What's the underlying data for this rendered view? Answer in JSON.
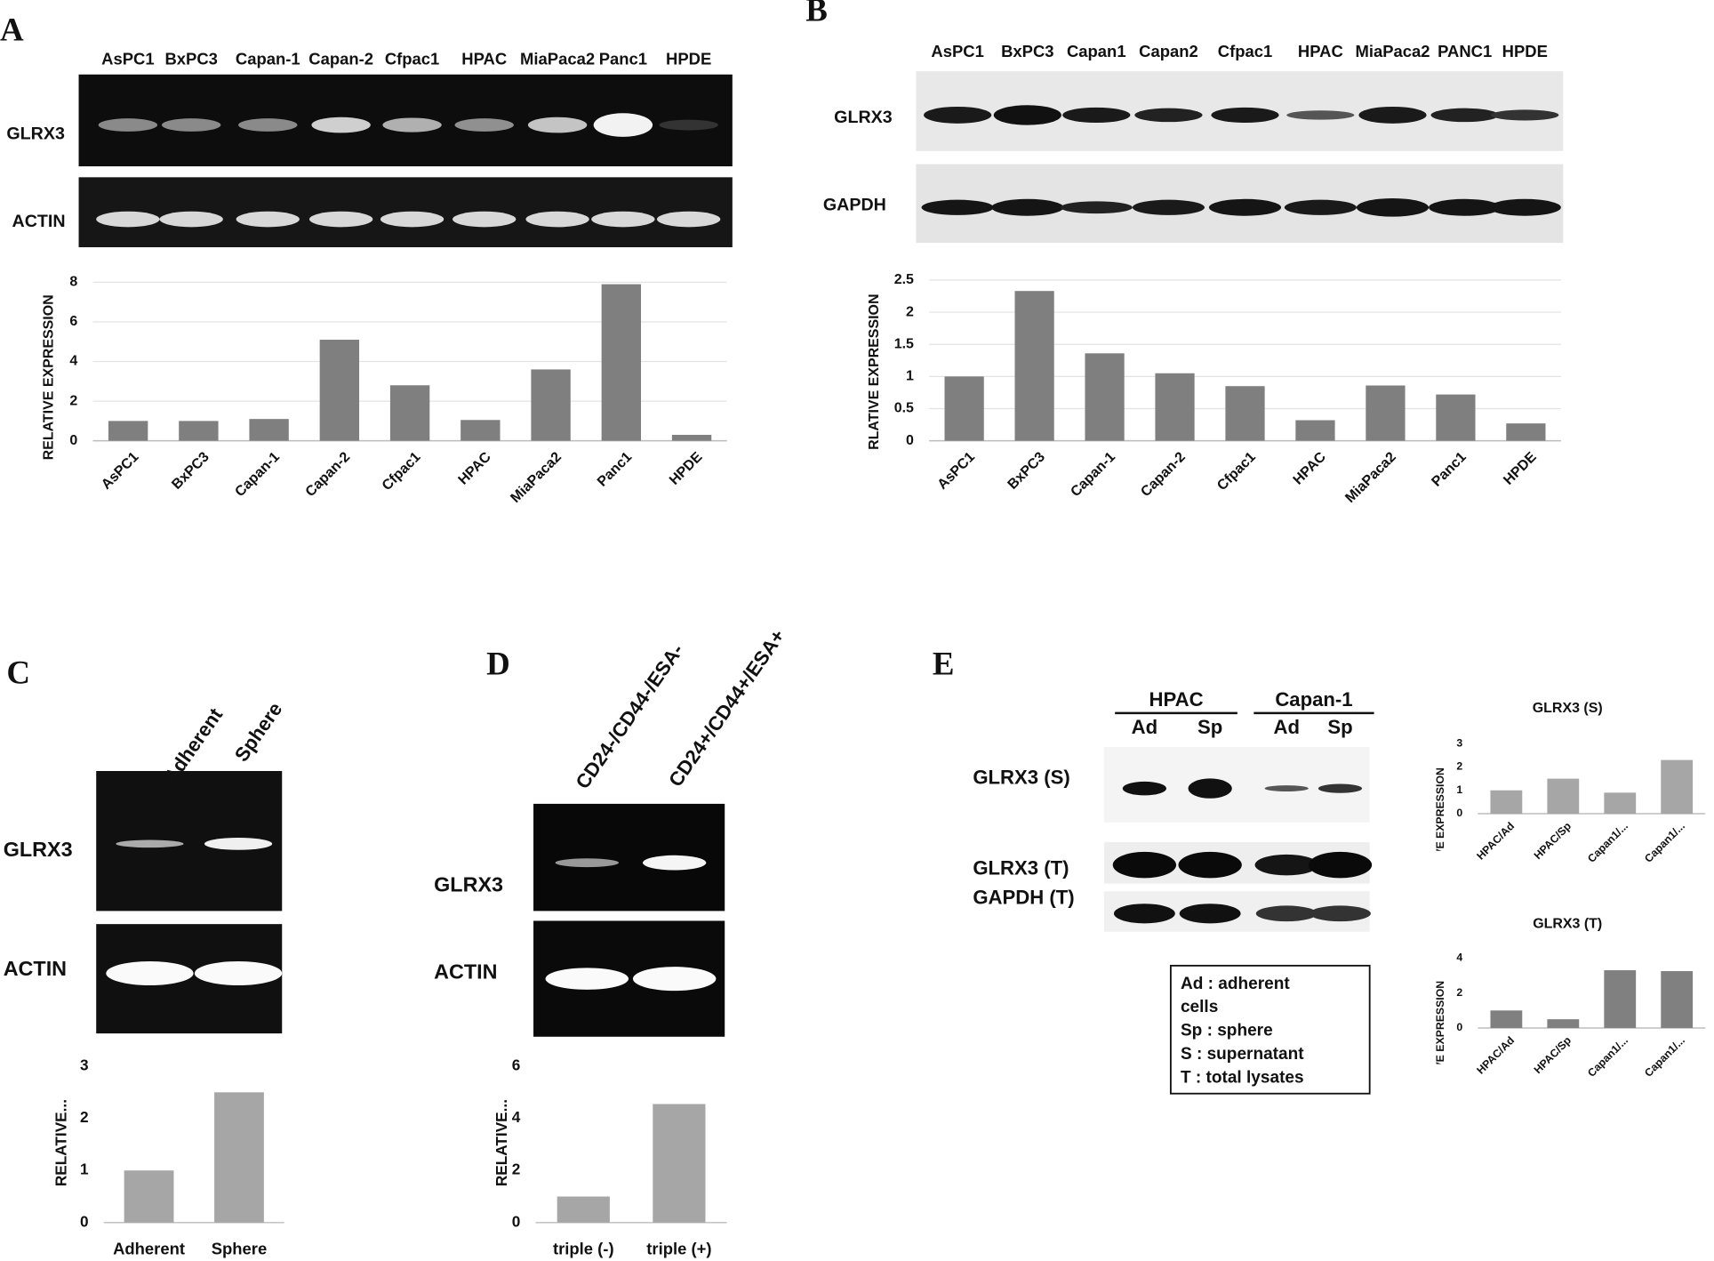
{
  "panels": {
    "A": {
      "letter": "A",
      "lanes": [
        "AsPC1",
        "BxPC3",
        "Capan-1",
        "Capan-2",
        "Cfpac1",
        "HPAC",
        "MiaPaca2",
        "Panc1",
        "HPDE"
      ],
      "rows": [
        "GLRX3",
        "ACTIN"
      ]
    },
    "B": {
      "letter": "B",
      "lanes": [
        "AsPC1",
        "BxPC3",
        "Capan1",
        "Capan2",
        "Cfpac1",
        "HPAC",
        "MiaPaca2",
        "PANC1",
        "HPDE"
      ],
      "rows": [
        "GLRX3",
        "GAPDH"
      ]
    },
    "C": {
      "letter": "C",
      "lanes": [
        "Adherent",
        "Sphere"
      ],
      "rows": [
        "GLRX3",
        "ACTIN"
      ]
    },
    "D": {
      "letter": "D",
      "lanes": [
        "CD24-/CD44-/ESA-",
        "CD24+/CD44+/ESA+"
      ],
      "rows": [
        "GLRX3",
        "ACTIN"
      ]
    },
    "E": {
      "letter": "E",
      "groups": [
        "HPAC",
        "Capan-1"
      ],
      "lanes": [
        "Ad",
        "Sp",
        "Ad",
        "Sp"
      ],
      "rows": [
        "GLRX3 (S)",
        "GLRX3 (T)",
        "GAPDH (T)"
      ],
      "legend": [
        "Ad : adherent",
        "cells",
        "Sp : sphere",
        "S : supernatant",
        "T : total lysates"
      ]
    }
  },
  "chart_data": [
    {
      "type": "bar",
      "ylabel": "RELATIVE EXPRESSION",
      "categories": [
        "AsPC1",
        "BxPC3",
        "Capan-1",
        "Capan-2",
        "Cfpac1",
        "HPAC",
        "MiaPaca2",
        "Panc1",
        "HPDE"
      ],
      "values": [
        1,
        1,
        1.1,
        5.1,
        2.8,
        1.05,
        3.6,
        7.9,
        0.3
      ],
      "color": "#7f7f7f",
      "ylim": [
        0,
        8
      ],
      "yticks": [
        0,
        2,
        4,
        6,
        8
      ],
      "grid": true
    },
    {
      "type": "bar",
      "ylabel": "RLATIVE EXPRESSION",
      "categories": [
        "AsPC1",
        "BxPC3",
        "Capan-1",
        "Capan-2",
        "Cfpac1",
        "HPAC",
        "MiaPaca2",
        "Panc1",
        "HPDE"
      ],
      "values": [
        1,
        2.33,
        1.36,
        1.05,
        0.85,
        0.32,
        0.86,
        0.72,
        0.27
      ],
      "color": "#7f7f7f",
      "ylim": [
        0,
        2.5
      ],
      "yticks": [
        0,
        0.5,
        1,
        1.5,
        2,
        2.5
      ],
      "grid": true
    },
    {
      "type": "bar",
      "ylabel": "RELATIVE...",
      "categories": [
        "Adherent",
        "Sphere"
      ],
      "values": [
        1,
        2.5
      ],
      "color": "#a6a6a6",
      "ylim": [
        0,
        3
      ],
      "yticks": [
        0,
        1,
        2,
        3
      ],
      "grid": false
    },
    {
      "type": "bar",
      "ylabel": "RELATIVE...",
      "categories": [
        "triple (-)",
        "triple (+)"
      ],
      "values": [
        1,
        4.55
      ],
      "color": "#a6a6a6",
      "ylim": [
        0,
        6
      ],
      "yticks": [
        0,
        2,
        4,
        6
      ],
      "grid": false
    },
    {
      "type": "bar",
      "title": "GLRX3  (S)",
      "ylabel": "RELATIVE EXPRESSION",
      "categories": [
        "HPAC/Ad",
        "HPAC/Sp",
        "Capan1/...",
        "Capan1/..."
      ],
      "values": [
        1,
        1.5,
        0.9,
        2.3
      ],
      "color": "#a6a6a6",
      "ylim": [
        0,
        3
      ],
      "yticks": [
        0,
        1,
        2,
        3
      ],
      "grid": false
    },
    {
      "type": "bar",
      "title": "GLRX3  (T)",
      "ylabel": "RELATIVE EXPRESSION",
      "categories": [
        "HPAC/Ad",
        "HPAC/Sp",
        "Capan1/...",
        "Capan1/..."
      ],
      "values": [
        1,
        0.5,
        3.3,
        3.25
      ],
      "color": "#808080",
      "ylim": [
        0,
        4
      ],
      "yticks": [
        0,
        2,
        4
      ],
      "grid": false
    }
  ]
}
